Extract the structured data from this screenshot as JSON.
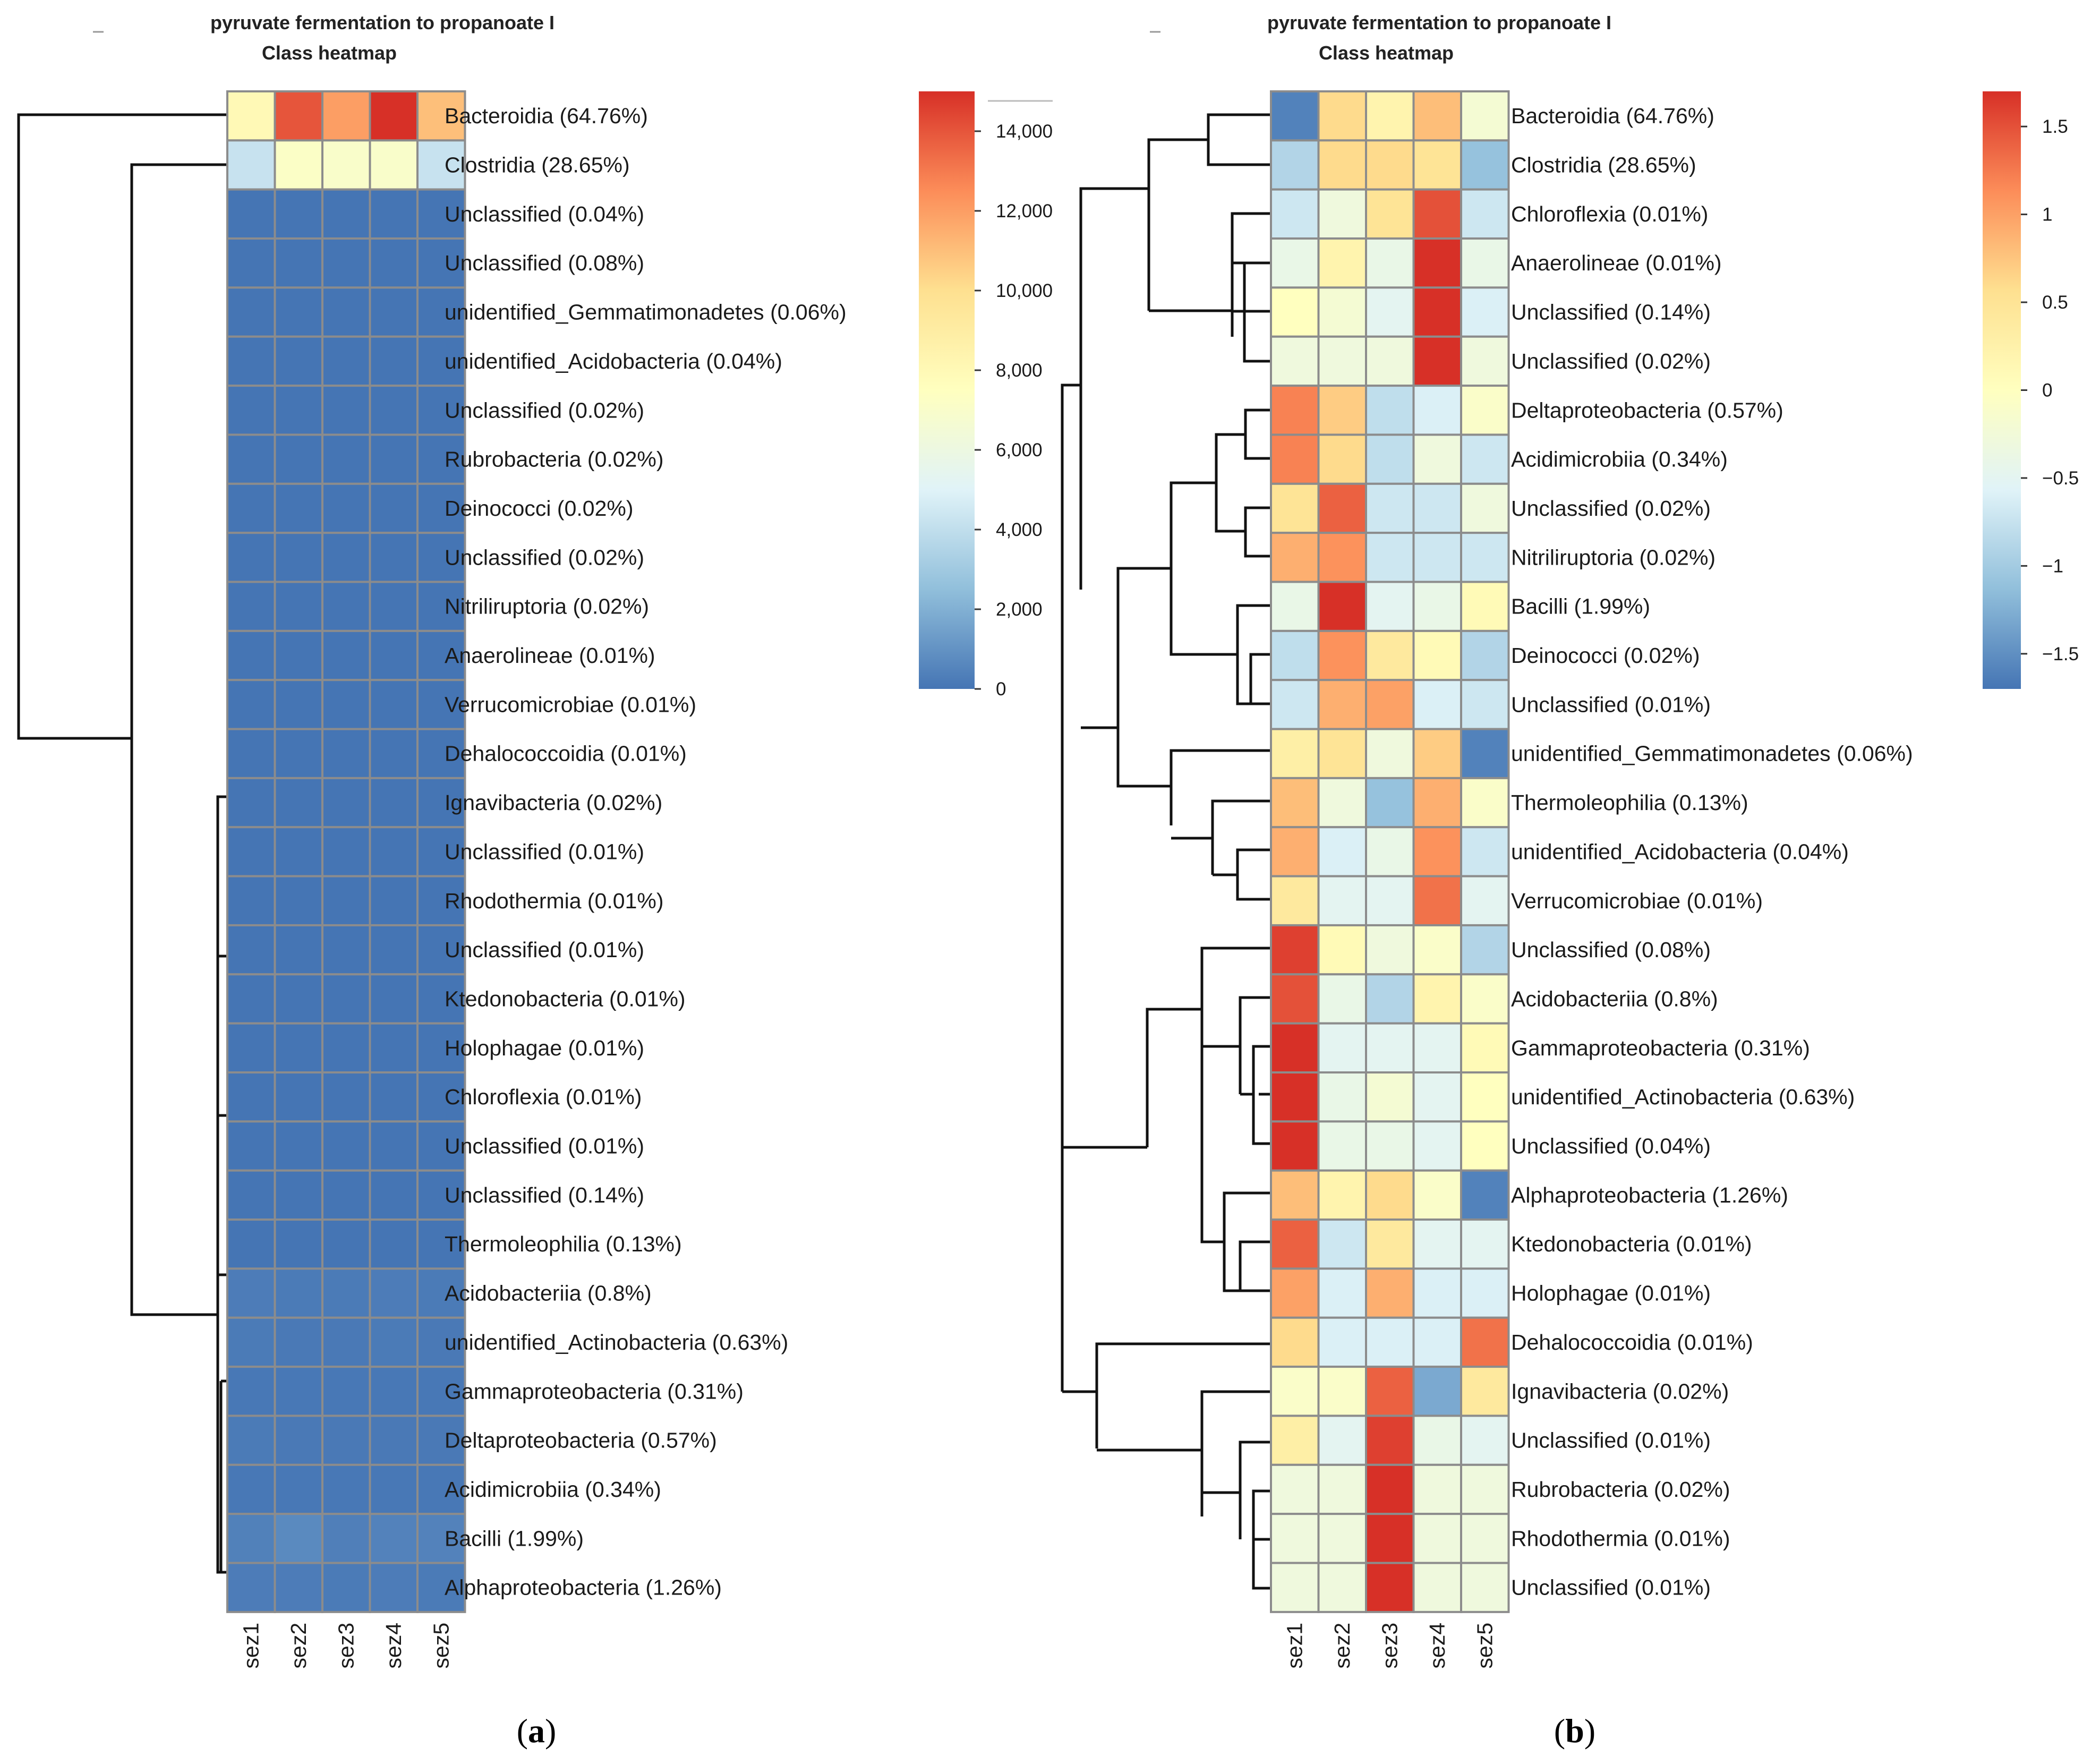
{
  "chart_data": [
    {
      "panel_label_open": "(",
      "panel_label_letter": "a",
      "panel_label_close": ")",
      "type": "heatmap",
      "title": "pyruvate fermentation to propanoate I",
      "subtitle": "Class heatmap",
      "columns": [
        "sez1",
        "sez2",
        "sez3",
        "sez4",
        "sez5"
      ],
      "rows": [
        "Bacteroidia (64.76%)",
        "Clostridia (28.65%)",
        "Unclassified (0.04%)",
        "Unclassified (0.08%)",
        "unidentified_Gemmatimonadetes (0.06%)",
        "unidentified_Acidobacteria (0.04%)",
        "Unclassified (0.02%)",
        "Rubrobacteria (0.02%)",
        "Deinococci (0.02%)",
        "Unclassified (0.02%)",
        "Nitriliruptoria (0.02%)",
        "Anaerolineae (0.01%)",
        "Verrucomicrobiae (0.01%)",
        "Dehalococcoidia (0.01%)",
        "Ignavibacteria (0.02%)",
        "Unclassified (0.01%)",
        "Rhodothermia (0.01%)",
        "Unclassified (0.01%)",
        "Ktedonobacteria (0.01%)",
        "Holophagae (0.01%)",
        "Chloroflexia (0.01%)",
        "Unclassified (0.01%)",
        "Unclassified (0.14%)",
        "Thermoleophilia (0.13%)",
        "Acidobacteriia (0.8%)",
        "unidentified_Actinobacteria (0.63%)",
        "Gammaproteobacteria (0.31%)",
        "Deltaproteobacteria (0.57%)",
        "Acidimicrobiia (0.34%)",
        "Bacilli (1.99%)",
        "Alphaproteobacteria (1.26%)"
      ],
      "values": [
        [
          8000,
          14000,
          12000,
          15000,
          11000
        ],
        [
          4200,
          7200,
          7000,
          7000,
          4200
        ],
        [
          0,
          0,
          0,
          0,
          0
        ],
        [
          0,
          0,
          0,
          0,
          0
        ],
        [
          0,
          0,
          0,
          0,
          0
        ],
        [
          0,
          0,
          0,
          0,
          0
        ],
        [
          0,
          0,
          0,
          0,
          0
        ],
        [
          0,
          0,
          0,
          0,
          0
        ],
        [
          0,
          0,
          0,
          0,
          0
        ],
        [
          0,
          0,
          0,
          0,
          0
        ],
        [
          0,
          0,
          0,
          0,
          0
        ],
        [
          0,
          0,
          0,
          0,
          0
        ],
        [
          0,
          0,
          0,
          0,
          0
        ],
        [
          0,
          0,
          0,
          0,
          0
        ],
        [
          0,
          0,
          0,
          0,
          0
        ],
        [
          0,
          0,
          0,
          0,
          0
        ],
        [
          0,
          0,
          0,
          0,
          0
        ],
        [
          0,
          0,
          0,
          0,
          0
        ],
        [
          0,
          0,
          0,
          0,
          0
        ],
        [
          0,
          0,
          0,
          0,
          0
        ],
        [
          0,
          0,
          0,
          0,
          0
        ],
        [
          0,
          0,
          0,
          0,
          0
        ],
        [
          0,
          0,
          0,
          0,
          0
        ],
        [
          0,
          0,
          0,
          0,
          0
        ],
        [
          250,
          200,
          200,
          250,
          200
        ],
        [
          200,
          150,
          150,
          200,
          150
        ],
        [
          100,
          100,
          100,
          100,
          100
        ],
        [
          200,
          150,
          150,
          150,
          150
        ],
        [
          100,
          100,
          100,
          100,
          100
        ],
        [
          400,
          700,
          350,
          450,
          450
        ],
        [
          250,
          250,
          200,
          250,
          200
        ]
      ],
      "color_scale": {
        "range": [
          0,
          15000
        ],
        "ticks": [
          0,
          2000,
          4000,
          6000,
          8000,
          10000,
          12000,
          14000
        ],
        "tick_labels": [
          "0",
          "2,000",
          "4,000",
          "6,000",
          "8,000",
          "10,000",
          "12,000",
          "14,000"
        ],
        "colors": [
          "#4575b4",
          "#91bfdb",
          "#e0f3f8",
          "#ffffbf",
          "#fee090",
          "#fc8d59",
          "#d73027"
        ]
      }
    },
    {
      "panel_label_open": "(",
      "panel_label_letter": "b",
      "panel_label_close": ")",
      "type": "heatmap",
      "title": "pyruvate fermentation to propanoate I",
      "subtitle": "Class heatmap",
      "columns": [
        "sez1",
        "sez2",
        "sez3",
        "sez4",
        "sez5"
      ],
      "rows": [
        "Bacteroidia (64.76%)",
        "Clostridia (28.65%)",
        "Chloroflexia (0.01%)",
        "Anaerolineae (0.01%)",
        "Unclassified (0.14%)",
        "Unclassified (0.02%)",
        "Deltaproteobacteria (0.57%)",
        "Acidimicrobiia (0.34%)",
        "Unclassified (0.02%)",
        "Nitriliruptoria (0.02%)",
        "Bacilli (1.99%)",
        "Deinococci (0.02%)",
        "Unclassified (0.01%)",
        "unidentified_Gemmatimonadetes (0.06%)",
        "Thermoleophilia (0.13%)",
        "unidentified_Acidobacteria (0.04%)",
        "Verrucomicrobiae (0.01%)",
        "Unclassified (0.08%)",
        "Acidobacteriia (0.8%)",
        "Gammaproteobacteria (0.31%)",
        "unidentified_Actinobacteria (0.63%)",
        "Unclassified (0.04%)",
        "Alphaproteobacteria (1.26%)",
        "Ktedonobacteria (0.01%)",
        "Holophagae (0.01%)",
        "Dehalococcoidia (0.01%)",
        "Ignavibacteria (0.02%)",
        "Unclassified (0.01%)",
        "Rubrobacteria (0.02%)",
        "Rhodothermia (0.01%)",
        "Unclassified (0.01%)"
      ],
      "values": [
        [
          -1.6,
          0.6,
          0.2,
          0.8,
          -0.2
        ],
        [
          -0.9,
          0.6,
          0.6,
          0.5,
          -1.1
        ],
        [
          -0.7,
          -0.3,
          0.5,
          1.5,
          -0.7
        ],
        [
          -0.4,
          0.2,
          -0.4,
          1.7,
          -0.4
        ],
        [
          0.0,
          -0.2,
          -0.5,
          1.7,
          -0.6
        ],
        [
          -0.3,
          -0.3,
          -0.3,
          1.7,
          -0.3
        ],
        [
          1.2,
          0.7,
          -0.8,
          -0.6,
          -0.1
        ],
        [
          1.2,
          0.6,
          -0.8,
          -0.3,
          -0.7
        ],
        [
          0.5,
          1.4,
          -0.7,
          -0.7,
          -0.3
        ],
        [
          0.9,
          1.1,
          -0.7,
          -0.7,
          -0.7
        ],
        [
          -0.4,
          1.7,
          -0.5,
          -0.4,
          0.1
        ],
        [
          -0.8,
          1.1,
          0.4,
          0.1,
          -0.9
        ],
        [
          -0.7,
          0.9,
          1.0,
          -0.6,
          -0.7
        ],
        [
          0.3,
          0.5,
          -0.3,
          0.7,
          -1.6
        ],
        [
          0.8,
          -0.3,
          -1.1,
          0.9,
          -0.1
        ],
        [
          0.9,
          -0.6,
          -0.4,
          1.1,
          -0.7
        ],
        [
          0.4,
          -0.5,
          -0.5,
          1.3,
          -0.5
        ],
        [
          1.6,
          0.1,
          -0.3,
          -0.1,
          -0.9
        ],
        [
          1.5,
          -0.4,
          -0.9,
          0.2,
          -0.1
        ],
        [
          1.7,
          -0.5,
          -0.5,
          -0.5,
          0.1
        ],
        [
          1.7,
          -0.4,
          -0.2,
          -0.5,
          0.0
        ],
        [
          1.7,
          -0.4,
          -0.4,
          -0.5,
          0.0
        ],
        [
          0.8,
          0.2,
          0.6,
          -0.1,
          -1.6
        ],
        [
          1.4,
          -0.7,
          0.4,
          -0.5,
          -0.5
        ],
        [
          1.0,
          -0.6,
          0.9,
          -0.6,
          -0.6
        ],
        [
          0.6,
          -0.6,
          -0.6,
          -0.6,
          1.3
        ],
        [
          -0.1,
          -0.1,
          1.4,
          -1.3,
          0.4
        ],
        [
          0.3,
          -0.5,
          1.6,
          -0.4,
          -0.5
        ],
        [
          -0.3,
          -0.3,
          1.7,
          -0.3,
          -0.3
        ],
        [
          -0.3,
          -0.3,
          1.7,
          -0.3,
          -0.3
        ],
        [
          -0.3,
          -0.3,
          1.7,
          -0.3,
          -0.3
        ]
      ],
      "color_scale": {
        "range": [
          -1.7,
          1.7
        ],
        "ticks": [
          -1.5,
          -1,
          -0.5,
          0,
          0.5,
          1,
          1.5
        ],
        "tick_labels": [
          "−1.5",
          "−1",
          "−0.5",
          "0",
          "0.5",
          "1",
          "1.5"
        ],
        "colors": [
          "#4575b4",
          "#91bfdb",
          "#e0f3f8",
          "#ffffbf",
          "#fee090",
          "#fc8d59",
          "#d73027"
        ]
      }
    }
  ]
}
